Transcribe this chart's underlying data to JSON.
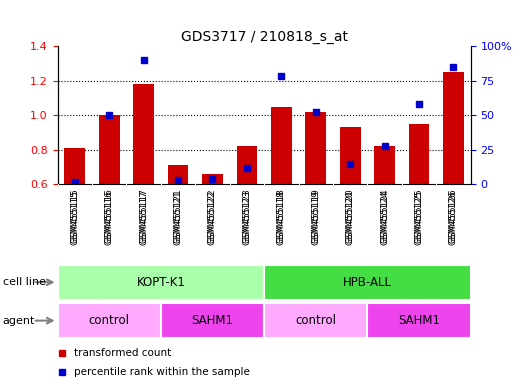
{
  "title": "GDS3717 / 210818_s_at",
  "samples": [
    "GSM455115",
    "GSM455116",
    "GSM455117",
    "GSM455121",
    "GSM455122",
    "GSM455123",
    "GSM455118",
    "GSM455119",
    "GSM455120",
    "GSM455124",
    "GSM455125",
    "GSM455126"
  ],
  "transformed_count": [
    0.81,
    1.0,
    1.18,
    0.71,
    0.66,
    0.82,
    1.05,
    1.02,
    0.93,
    0.82,
    0.95,
    1.25
  ],
  "percentile_rank": [
    2,
    50,
    90,
    3,
    4,
    12,
    78,
    52,
    15,
    28,
    58,
    85
  ],
  "ylim_left": [
    0.6,
    1.4
  ],
  "ylim_right": [
    0,
    100
  ],
  "bar_color": "#cc0000",
  "dot_color": "#0000cc",
  "bg_color": "#cccccc",
  "cell_line_groups": [
    {
      "label": "KOPT-K1",
      "start": 0,
      "end": 6,
      "color": "#aaffaa"
    },
    {
      "label": "HPB-ALL",
      "start": 6,
      "end": 12,
      "color": "#44dd44"
    }
  ],
  "agent_groups": [
    {
      "label": "control",
      "start": 0,
      "end": 3,
      "color": "#ffaaff"
    },
    {
      "label": "SAHM1",
      "start": 3,
      "end": 6,
      "color": "#ee44ee"
    },
    {
      "label": "control",
      "start": 6,
      "end": 9,
      "color": "#ffaaff"
    },
    {
      "label": "SAHM1",
      "start": 9,
      "end": 12,
      "color": "#ee44ee"
    }
  ],
  "legend_red": "transformed count",
  "legend_blue": "percentile rank within the sample",
  "cell_line_label": "cell line",
  "agent_label": "agent",
  "yticks_left": [
    0.6,
    0.8,
    1.0,
    1.2,
    1.4
  ],
  "yticks_right": [
    0,
    25,
    50,
    75,
    100
  ],
  "grid_lines": [
    0.8,
    1.0,
    1.2
  ]
}
